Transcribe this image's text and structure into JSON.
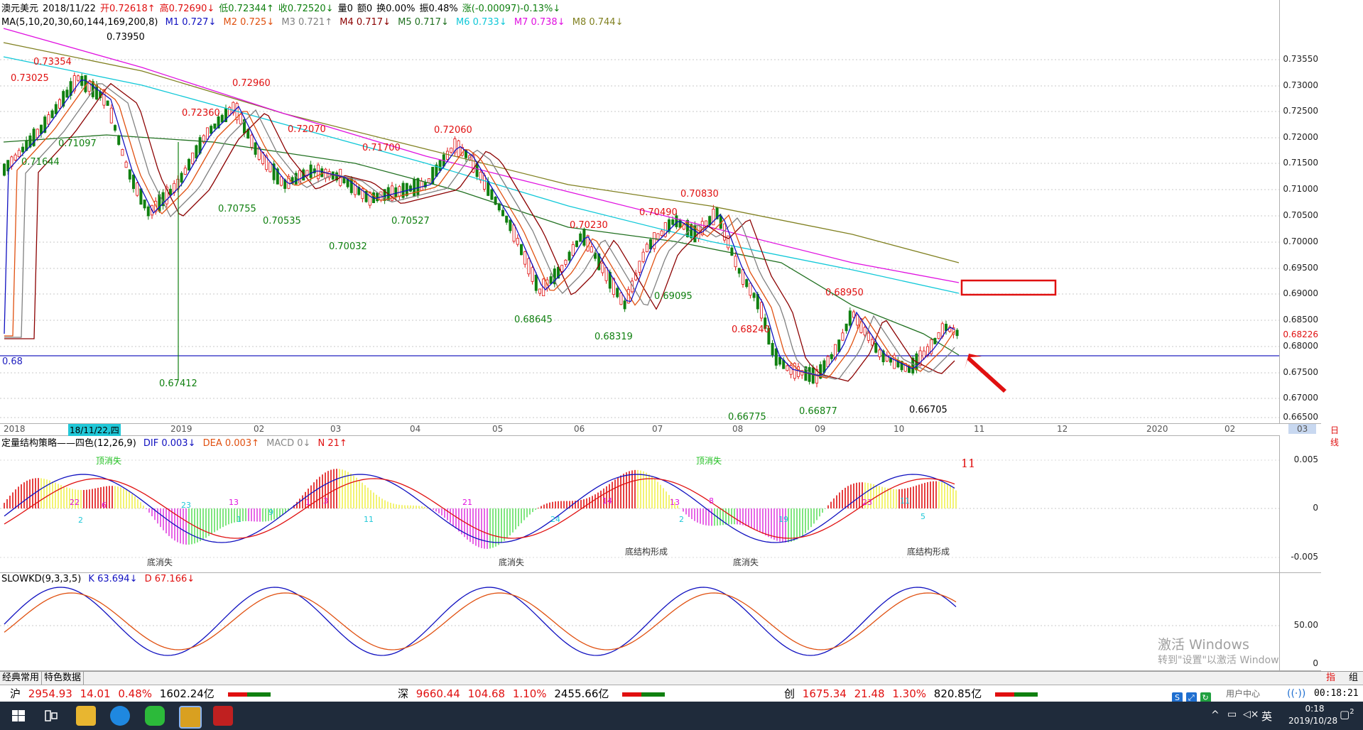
{
  "header": {
    "symbol": "澳元美元",
    "date": "2018/11/22",
    "open": "开0.72618↑",
    "high": "高0.72690↓",
    "low": "低0.72344↑",
    "close": "收0.72520↓",
    "volume": "量0",
    "amount": "额0",
    "turnover": "换0.00%",
    "amplitude": "振0.48%",
    "change": "涨(-0.00097)-0.13%↓"
  },
  "ma_legend": {
    "title": "MA(5,10,20,30,60,144,169,200,8)",
    "items": [
      {
        "label": "M1 0.727↓",
        "color": "#1010c0"
      },
      {
        "label": "M2 0.725↓",
        "color": "#e05010"
      },
      {
        "label": "M3 0.721↑",
        "color": "#808080"
      },
      {
        "label": "M4 0.717↓",
        "color": "#8b0000"
      },
      {
        "label": "M5 0.717↓",
        "color": "#207020"
      },
      {
        "label": "M6 0.733↓",
        "color": "#10c8d8"
      },
      {
        "label": "M7 0.738↓",
        "color": "#e010e0"
      },
      {
        "label": "M8 0.744↓",
        "color": "#808020"
      }
    ]
  },
  "price_axis": [
    "0.73550",
    "0.73000",
    "0.72500",
    "0.72000",
    "0.71500",
    "0.71000",
    "0.70500",
    "0.70000",
    "0.69500",
    "0.69000",
    "0.68500",
    "0.68226",
    "0.68000",
    "0.67500",
    "0.67000",
    "0.66500"
  ],
  "price_annotations": [
    {
      "text": "0.73950",
      "color": "#000"
    },
    {
      "text": "0.73354",
      "color": "#e01010"
    },
    {
      "text": "0.73025",
      "color": "#e01010"
    },
    {
      "text": "0.72960",
      "color": "#e01010"
    },
    {
      "text": "0.72360",
      "color": "#e01010"
    },
    {
      "text": "0.72070",
      "color": "#e01010"
    },
    {
      "text": "0.72060",
      "color": "#e01010"
    },
    {
      "text": "0.71700",
      "color": "#e01010"
    },
    {
      "text": "0.71097",
      "color": "#108010"
    },
    {
      "text": "0.71644",
      "color": "#108010"
    },
    {
      "text": "0.70755",
      "color": "#108010"
    },
    {
      "text": "0.70535",
      "color": "#108010"
    },
    {
      "text": "0.70527",
      "color": "#108010"
    },
    {
      "text": "0.70032",
      "color": "#108010"
    },
    {
      "text": "0.70830",
      "color": "#e01010"
    },
    {
      "text": "0.70490",
      "color": "#e01010"
    },
    {
      "text": "0.70230",
      "color": "#e01010"
    },
    {
      "text": "0.69095",
      "color": "#108010"
    },
    {
      "text": "0.68645",
      "color": "#108010"
    },
    {
      "text": "0.68319",
      "color": "#108010"
    },
    {
      "text": "0.68950",
      "color": "#e01010"
    },
    {
      "text": "0.68240",
      "color": "#e01010"
    },
    {
      "text": "0.67412",
      "color": "#108010"
    },
    {
      "text": "0.66775",
      "color": "#108010"
    },
    {
      "text": "0.66877",
      "color": "#108010"
    },
    {
      "text": "0.66705",
      "color": "#000"
    }
  ],
  "level_line_label": "0.68",
  "last_price": "0.68226",
  "date_axis": [
    "2018",
    "18/11/22,四",
    "2019",
    "02",
    "03",
    "04",
    "05",
    "06",
    "07",
    "08",
    "09",
    "10",
    "11",
    "12",
    "2020",
    "02",
    "03",
    "日线"
  ],
  "macd": {
    "title": "定量结构策略——四色(12,26,9)",
    "dif": "DIF 0.003↓",
    "dea": "DEA 0.003↑",
    "macd": "MACD 0↓",
    "n": "N 21↑",
    "axis": [
      "0.005",
      "0",
      "-0.005"
    ],
    "labels_top": [
      "顶消失",
      "顶消失"
    ],
    "labels_bottom": [
      "底消失",
      "底消失",
      "底结构形成",
      "底消失",
      "底结构形成"
    ],
    "numbers": [
      "22",
      "2",
      "6",
      "23",
      "13",
      "1",
      "9",
      "1",
      "3",
      "11",
      "21",
      "24",
      "14",
      "13",
      "2",
      "8",
      "19",
      "23",
      "5",
      "11"
    ]
  },
  "kd": {
    "title": "SLOWKD(9,3,3,5)",
    "k": "K 63.694↓",
    "d": "D 67.166↓",
    "axis": [
      "50.00",
      "0"
    ],
    "watermark_1": "激活 Windows",
    "watermark_2": "转到\"设置\"以激活 Windows。"
  },
  "tabs": [
    "经典常用",
    "特色数据"
  ],
  "tabs_right": [
    "指",
    "组"
  ],
  "status": {
    "sh": {
      "name": "沪",
      "price": "2954.93",
      "chg": "14.01",
      "pct": "0.48%",
      "amt": "1602.24亿"
    },
    "sz": {
      "name": "深",
      "price": "9660.44",
      "chg": "104.68",
      "pct": "1.10%",
      "amt": "2455.66亿"
    },
    "cy": {
      "name": "创",
      "price": "1675.34",
      "chg": "21.48",
      "pct": "1.30%",
      "amt": "820.85亿"
    },
    "user_center": "用户中心",
    "clock": "00:18:21"
  },
  "taskbar": {
    "time": "0:18",
    "date": "2019/10/28",
    "lang": "英",
    "notif": "2"
  }
}
